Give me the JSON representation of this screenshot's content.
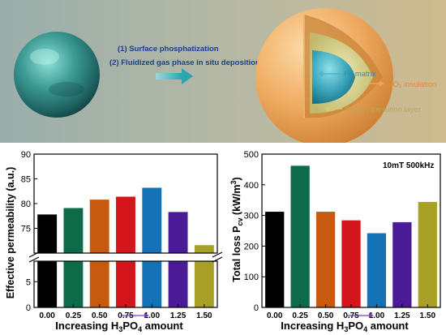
{
  "scheme": {
    "step1": "(1) Surface phosphatization",
    "step2": "(2) Fluidized gas phase in situ deposition",
    "labels": {
      "fe_matrix": "Fe matrix",
      "sio2": "SiO₂ insulation",
      "fepo4": "FePO₄ transition layer"
    },
    "colors": {
      "bg_left": "#9fb0ac",
      "bg_right": "#cdb98e",
      "particle": "#2f8f8c",
      "arrow": "#3fb0b5",
      "step_text": "#1d3f8a",
      "shell": "#e8a35a",
      "middle_layer": "#d9d49a",
      "core": "#36a0b8"
    }
  },
  "chart_data": [
    {
      "type": "bar",
      "categories": [
        "0.00",
        "0.25",
        "0.50",
        "0.75",
        "1.00",
        "1.25",
        "1.50"
      ],
      "values": [
        77.8,
        79.1,
        80.8,
        81.4,
        83.2,
        78.3,
        71.6
      ],
      "ylabel": "Effective permeability (a.u.)",
      "xlabel": "Increasing H3PO4 amount",
      "xlabel_parts": [
        "Increasing H",
        "3",
        "PO",
        "4",
        " amount"
      ],
      "broken_axis": true,
      "upper_range": [
        70,
        90
      ],
      "lower_range": [
        0,
        9
      ],
      "upper_ticks": [
        "75",
        "80",
        "85",
        "90"
      ],
      "lower_ticks": [
        "0",
        "5"
      ],
      "colors": [
        "#000000",
        "#0d6b4a",
        "#c65a0e",
        "#d4151b",
        "#1572b6",
        "#4b1b97",
        "#a8a026"
      ]
    },
    {
      "type": "bar",
      "categories": [
        "0.00",
        "0.25",
        "0.50",
        "0.75",
        "1.00",
        "1.25",
        "1.50"
      ],
      "values": [
        312,
        462,
        312,
        284,
        242,
        278,
        344
      ],
      "ylabel": "Total loss Pcv (kW/m3)",
      "ylabel_parts": [
        "Total loss P",
        "cv",
        " (kW/m",
        "3",
        ")"
      ],
      "xlabel": "Increasing H3PO4 amount",
      "xlabel_parts": [
        "Increasing H",
        "3",
        "PO",
        "4",
        " amount"
      ],
      "annotation": "10mT 500kHz",
      "ylim": [
        0,
        500
      ],
      "yticks": [
        "0",
        "100",
        "200",
        "300",
        "400",
        "500"
      ],
      "colors": [
        "#000000",
        "#0d6b4a",
        "#c65a0e",
        "#d4151b",
        "#1572b6",
        "#4b1b97",
        "#a8a026"
      ]
    }
  ]
}
